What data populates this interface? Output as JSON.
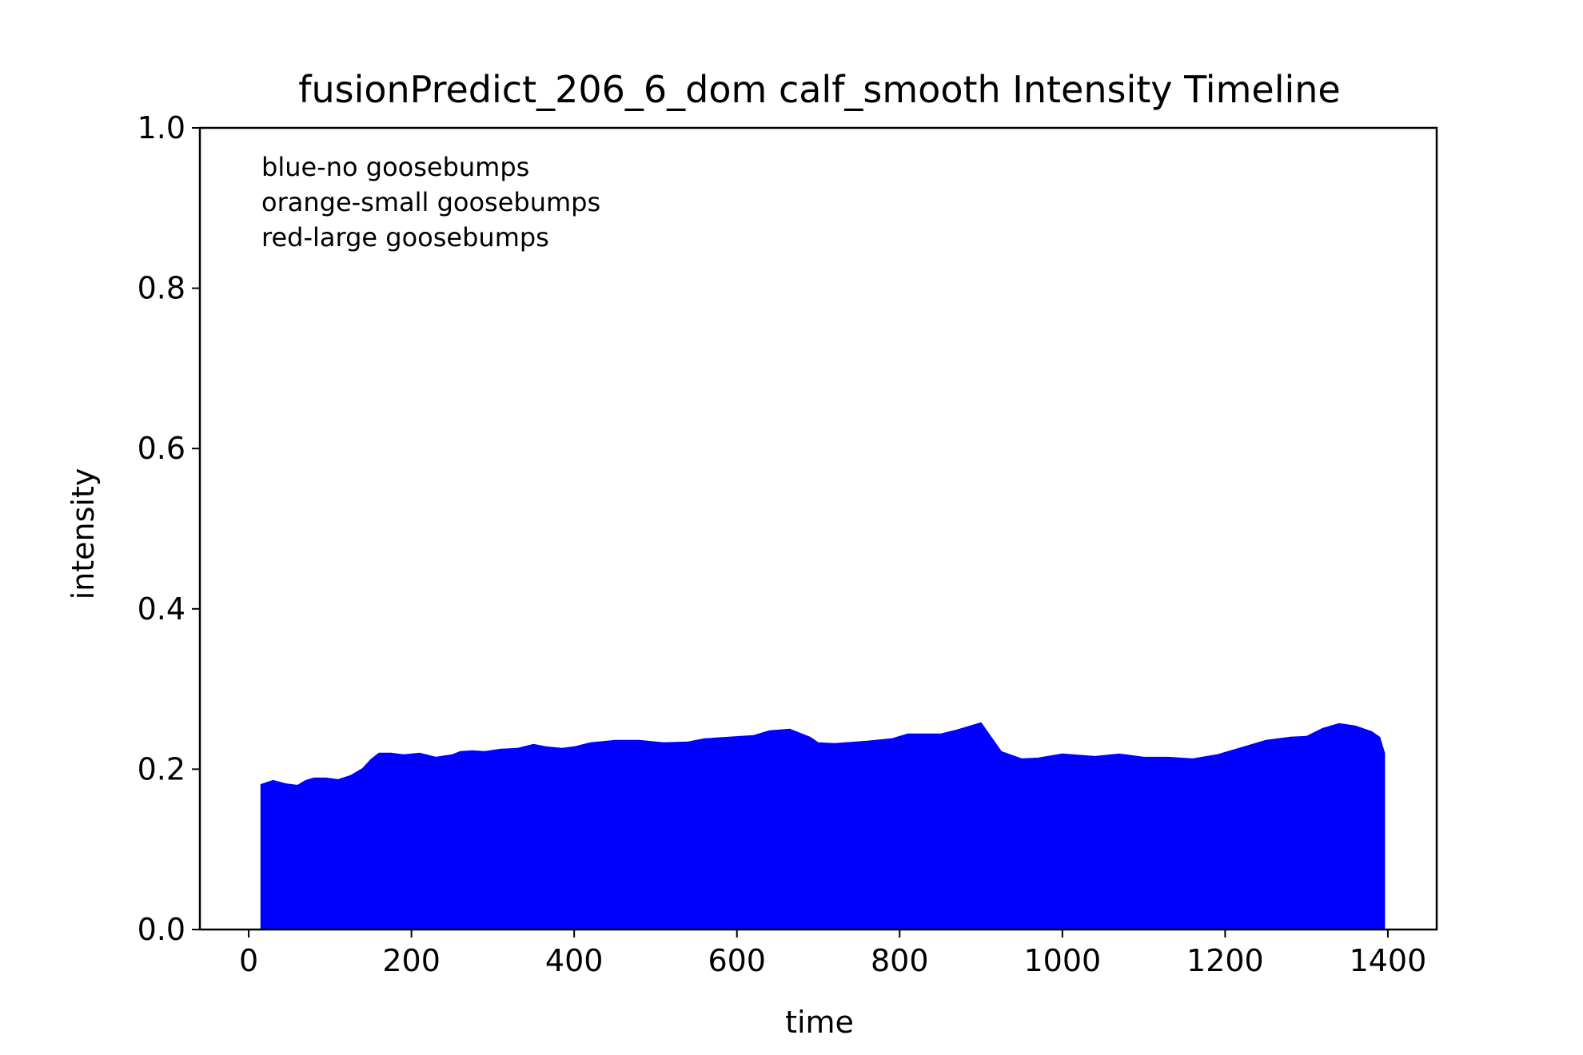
{
  "chart_data": {
    "type": "area",
    "title": "fusionPredict_206_6_dom calf_smooth Intensity Timeline",
    "xlabel": "time",
    "ylabel": "intensity",
    "xlim": [
      -60,
      1460
    ],
    "ylim": [
      0.0,
      1.0
    ],
    "xticks": [
      0,
      200,
      400,
      600,
      800,
      1000,
      1200,
      1400
    ],
    "xtick_labels": [
      "0",
      "200",
      "400",
      "600",
      "800",
      "1000",
      "1200",
      "1400"
    ],
    "yticks": [
      0.0,
      0.2,
      0.4,
      0.6,
      0.8,
      1.0
    ],
    "ytick_labels": [
      "0.0",
      "0.2",
      "0.4",
      "0.6",
      "0.8",
      "1.0"
    ],
    "grid": false,
    "annotation_lines": [
      "blue-no goosebumps",
      "orange-small goosebumps",
      "red-large goosebumps"
    ],
    "series": [
      {
        "color": "#0000ff",
        "x": [
          15,
          30,
          45,
          60,
          70,
          80,
          95,
          110,
          125,
          140,
          150,
          160,
          175,
          190,
          210,
          230,
          250,
          260,
          275,
          290,
          310,
          330,
          350,
          365,
          385,
          400,
          420,
          450,
          480,
          510,
          540,
          560,
          590,
          620,
          640,
          665,
          690,
          700,
          720,
          760,
          790,
          810,
          850,
          870,
          900,
          925,
          950,
          970,
          1000,
          1040,
          1070,
          1100,
          1130,
          1160,
          1190,
          1220,
          1250,
          1280,
          1300,
          1320,
          1340,
          1360,
          1380,
          1390,
          1396
        ],
        "y": [
          0.181,
          0.186,
          0.182,
          0.18,
          0.186,
          0.189,
          0.189,
          0.187,
          0.192,
          0.201,
          0.212,
          0.22,
          0.22,
          0.218,
          0.22,
          0.215,
          0.218,
          0.222,
          0.223,
          0.222,
          0.225,
          0.226,
          0.231,
          0.228,
          0.226,
          0.228,
          0.233,
          0.236,
          0.236,
          0.233,
          0.234,
          0.238,
          0.24,
          0.242,
          0.248,
          0.25,
          0.24,
          0.233,
          0.232,
          0.235,
          0.238,
          0.244,
          0.244,
          0.249,
          0.258,
          0.222,
          0.213,
          0.214,
          0.219,
          0.216,
          0.219,
          0.215,
          0.215,
          0.213,
          0.218,
          0.227,
          0.236,
          0.24,
          0.241,
          0.251,
          0.257,
          0.254,
          0.247,
          0.24,
          0.22
        ]
      }
    ]
  }
}
